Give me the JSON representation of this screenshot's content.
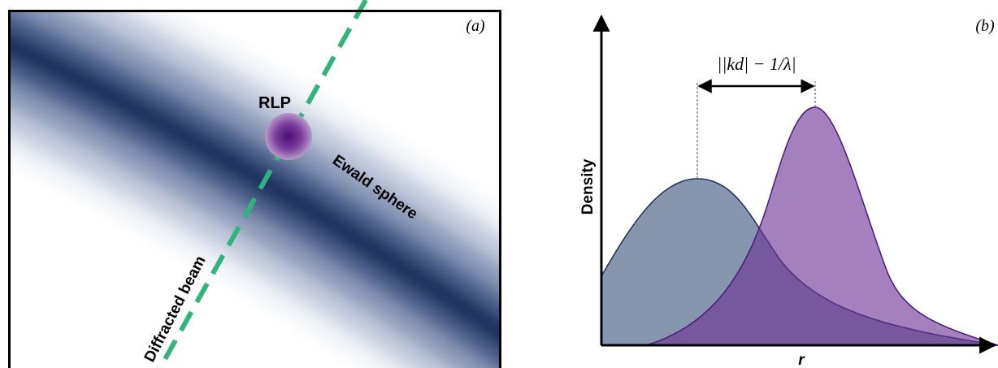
{
  "panel_a": {
    "label": "(a)",
    "rlp_label": "RLP",
    "ewald_label": "Ewald sphere",
    "beam_label": "Diffracted beam"
  },
  "panel_b": {
    "label": "(b)",
    "y_axis_label": "Density",
    "x_axis_label": "r",
    "separation_label": "||kd| − 1/λ|"
  }
}
